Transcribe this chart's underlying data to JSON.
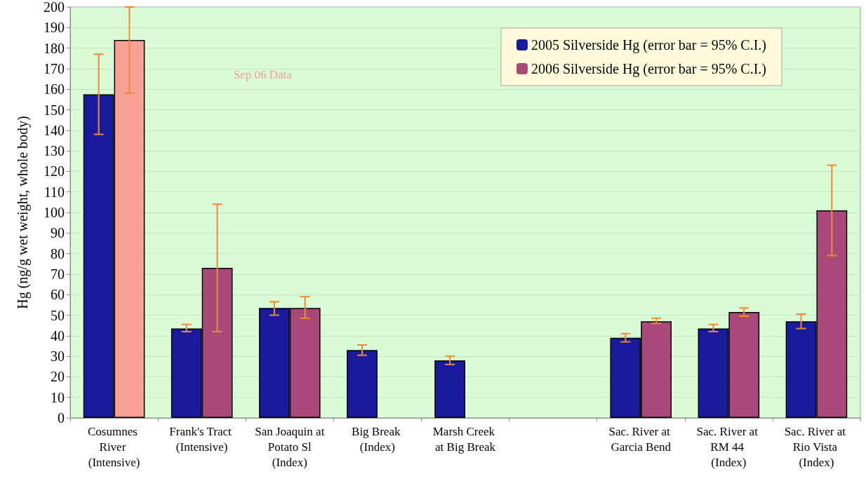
{
  "chart_data": {
    "type": "bar",
    "ylabel": "Hg (ng/g wet weight, whole body)",
    "categories": [
      "Cosumnes River (Intensive)",
      "Frank's Tract (Intensive)",
      "San Joaquin at Potato Sl (Index)",
      "Big Break (Index)",
      "Marsh Creek at Big Break",
      null,
      "Sac. River at Garcia Bend",
      "Sac. River at RM 44 (Index)",
      "Sac. River at Rio Vista (Index)"
    ],
    "series": [
      {
        "name": "2005 Silverside Hg (error bar = 95% C.I.)",
        "color": "#1a1a9c",
        "values": [
          157.5,
          43.5,
          53.5,
          33,
          28,
          null,
          39,
          43.5,
          47
        ],
        "errors": [
          [
            138,
            177
          ],
          [
            42,
            45.5
          ],
          [
            50,
            56.5
          ],
          [
            30.5,
            35.5
          ],
          [
            26,
            30
          ],
          null,
          [
            37,
            41
          ],
          [
            42,
            45.5
          ],
          [
            43.5,
            50.5
          ]
        ]
      },
      {
        "name": "2006 Silverside Hg (error bar = 95% C.I.)",
        "color": "#a8497a",
        "colors": [
          "#f7a096",
          "#a8497a",
          "#a8497a",
          "#a8497a",
          "#a8497a",
          "#a8497a",
          "#a8497a",
          "#a8497a",
          "#a8497a"
        ],
        "values": [
          184,
          73,
          53.5,
          null,
          null,
          null,
          47,
          51.5,
          101
        ],
        "errors": [
          [
            158,
            200
          ],
          [
            42,
            104
          ],
          [
            48.5,
            59
          ],
          null,
          null,
          null,
          [
            46,
            48.5
          ],
          [
            49.5,
            53.5
          ],
          [
            79,
            123
          ]
        ]
      }
    ],
    "annotations": [
      "Sep 06 Data"
    ],
    "ylim": [
      0,
      200
    ],
    "yticks": [
      0,
      10,
      20,
      30,
      40,
      50,
      60,
      70,
      80,
      90,
      100,
      110,
      120,
      130,
      140,
      150,
      160,
      170,
      180,
      190,
      200
    ],
    "grid": "y",
    "legend": "top right"
  }
}
